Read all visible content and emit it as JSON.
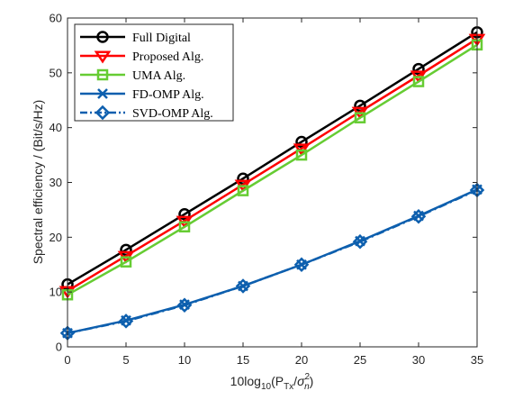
{
  "chart_data": {
    "type": "line",
    "title": "",
    "xlabel": {
      "prefix": "10log",
      "sub": "10",
      "open": "(P",
      "tx": "Tx",
      "slash": "/",
      "sigma": "σ",
      "n": "n",
      "two": "2",
      "close": ")"
    },
    "ylabel": "Spectral efficiency / (Bit/s/Hz)",
    "xlim": [
      0,
      35
    ],
    "ylim": [
      0,
      60
    ],
    "x_ticks": [
      0,
      5,
      10,
      15,
      20,
      25,
      30,
      35
    ],
    "y_ticks": [
      0,
      10,
      20,
      30,
      40,
      50,
      60
    ],
    "x_tick_labels": [
      "0",
      "5",
      "10",
      "15",
      "20",
      "25",
      "30",
      "35"
    ],
    "y_tick_labels": [
      "0",
      "10",
      "20",
      "30",
      "40",
      "50",
      "60"
    ],
    "x": [
      0,
      5,
      10,
      15,
      20,
      25,
      30,
      35
    ],
    "grid": false,
    "legend_position": "top-left",
    "series": [
      {
        "name": "Full Digital",
        "color": "#000000",
        "marker": "circle",
        "line": "solid",
        "values": [
          11.4,
          17.7,
          24.2,
          30.7,
          37.4,
          44.0,
          50.7,
          57.4
        ]
      },
      {
        "name": "Proposed Alg.",
        "color": "#ff0000",
        "marker": "triangle-down",
        "line": "solid",
        "values": [
          10.2,
          16.6,
          23.0,
          29.6,
          36.2,
          42.9,
          49.5,
          56.2
        ]
      },
      {
        "name": "UMA Alg.",
        "color": "#66cc33",
        "marker": "square",
        "line": "solid",
        "values": [
          9.5,
          15.5,
          21.9,
          28.5,
          35.0,
          41.8,
          48.4,
          55.1
        ]
      },
      {
        "name": "FD-OMP Alg.",
        "color": "#0d5fae",
        "marker": "x",
        "line": "solid",
        "values": [
          2.5,
          4.8,
          7.7,
          11.1,
          15.0,
          19.3,
          23.9,
          28.7
        ]
      },
      {
        "name": "SVD-OMP Alg.",
        "color": "#0d5fae",
        "marker": "diamond",
        "line": "dashdot",
        "values": [
          2.5,
          4.7,
          7.6,
          11.1,
          15.0,
          19.2,
          23.8,
          28.6
        ]
      }
    ]
  }
}
